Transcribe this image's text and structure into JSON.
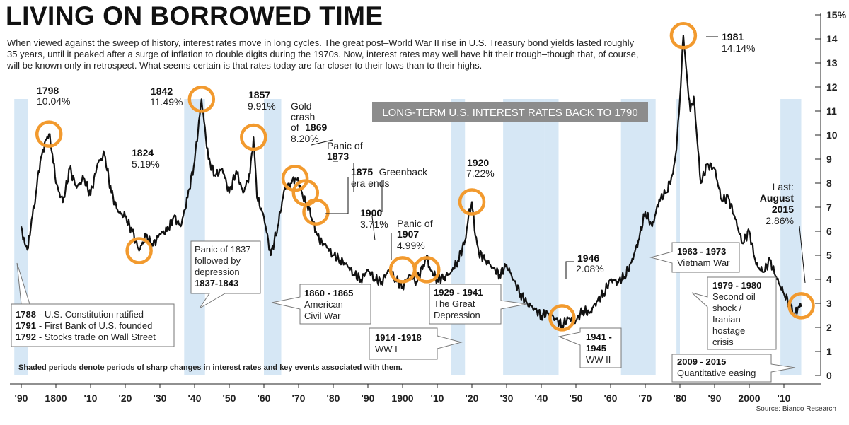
{
  "title": "LIVING ON BORROWED TIME",
  "subtitle": "When viewed against the sweep of history, interest rates move in long cycles. The great post–World War II rise in U.S. Treasury bond yields lasted roughly 35 years, until it peaked after a surge of inflation to double digits during the 1970s. Now, interest rates may well have hit their trough–though that, of course, will be known only in retrospect. What seems certain is that  rates today are far closer to their lows than to their highs.",
  "chart_title": "LONG-TERM U.S. INTEREST RATES BACK TO 1790",
  "footnote": "Shaded periods denote periods of sharp changes in interest rates and key events associated with them.",
  "source": "Source: Bianco Research",
  "colors": {
    "line": "#111111",
    "shade": "#cfe3f3",
    "circle": "#f29a2e",
    "banner": "#8c8c8c"
  },
  "chart_data": {
    "type": "line",
    "xlim": [
      1790,
      2016
    ],
    "ylim": [
      0,
      15
    ],
    "x_tick_labels": [
      "'90",
      "1800",
      "'10",
      "'20",
      "'30",
      "'40",
      "'50",
      "'60",
      "'70",
      "'80",
      "'90",
      "1900",
      "'10",
      "'20",
      "'30",
      "'40",
      "'50",
      "'60",
      "'70",
      "'80",
      "'90",
      "2000",
      "'10"
    ],
    "y_tick_labels": [
      "0",
      "1",
      "2",
      "3",
      "4",
      "5",
      "6",
      "7",
      "8",
      "9",
      "10",
      "11",
      "12",
      "13",
      "14",
      "15%"
    ],
    "series": [
      {
        "x": [
          1790,
          1791,
          1792,
          1793,
          1794,
          1795,
          1796,
          1797,
          1798,
          1799,
          1800,
          1802,
          1804,
          1806,
          1808,
          1810,
          1812,
          1814,
          1816,
          1818,
          1820,
          1822,
          1824,
          1826,
          1828,
          1830,
          1832,
          1834,
          1836,
          1838,
          1840,
          1842,
          1844,
          1846,
          1848,
          1850,
          1852,
          1854,
          1856,
          1857,
          1858,
          1860,
          1862,
          1864,
          1866,
          1868,
          1869,
          1870,
          1871,
          1872,
          1873,
          1874,
          1875,
          1876,
          1878,
          1880,
          1882,
          1884,
          1886,
          1888,
          1890,
          1892,
          1894,
          1896,
          1898,
          1900,
          1902,
          1904,
          1906,
          1907,
          1908,
          1910,
          1912,
          1914,
          1916,
          1918,
          1919,
          1920,
          1921,
          1922,
          1924,
          1926,
          1928,
          1930,
          1932,
          1934,
          1936,
          1938,
          1940,
          1942,
          1944,
          1946,
          1948,
          1950,
          1952,
          1954,
          1956,
          1958,
          1960,
          1962,
          1964,
          1966,
          1968,
          1970,
          1972,
          1974,
          1976,
          1978,
          1979,
          1980,
          1981,
          1982,
          1983,
          1984,
          1986,
          1988,
          1990,
          1992,
          1994,
          1996,
          1998,
          2000,
          2002,
          2004,
          2006,
          2008,
          2010,
          2012,
          2013,
          2014,
          2015
        ],
        "y": [
          6.2,
          5.5,
          5.3,
          6.5,
          7.2,
          8.5,
          9.2,
          9.8,
          10.04,
          9.2,
          8.0,
          7.2,
          8.6,
          7.8,
          8.2,
          7.5,
          8.8,
          9.2,
          7.6,
          6.8,
          6.6,
          6.0,
          5.19,
          5.8,
          5.4,
          5.9,
          6.0,
          6.6,
          6.2,
          7.4,
          8.9,
          11.49,
          9.0,
          8.3,
          8.6,
          7.6,
          8.5,
          7.6,
          8.4,
          9.91,
          7.4,
          6.6,
          5.0,
          6.2,
          7.8,
          8.0,
          8.2,
          8.0,
          7.6,
          7.2,
          7.0,
          6.4,
          6.0,
          5.6,
          5.4,
          5.0,
          4.8,
          4.6,
          4.2,
          4.0,
          4.4,
          4.0,
          3.9,
          4.4,
          4.0,
          3.71,
          4.2,
          3.9,
          4.6,
          4.99,
          4.4,
          4.0,
          4.1,
          4.3,
          4.8,
          5.6,
          6.6,
          7.22,
          5.8,
          5.1,
          4.8,
          4.5,
          4.2,
          4.6,
          4.0,
          3.4,
          3.0,
          2.8,
          2.5,
          2.6,
          2.4,
          2.08,
          2.4,
          2.3,
          2.7,
          2.6,
          3.1,
          3.4,
          4.0,
          3.9,
          4.1,
          4.7,
          5.6,
          6.8,
          6.2,
          7.3,
          7.6,
          8.4,
          9.4,
          11.5,
          14.14,
          12.5,
          11.0,
          11.6,
          8.0,
          8.8,
          8.6,
          7.3,
          7.4,
          6.5,
          5.5,
          6.0,
          4.6,
          4.3,
          4.8,
          4.0,
          3.4,
          2.9,
          2.5,
          2.8,
          2.86
        ]
      }
    ],
    "highlighted_points": [
      {
        "year": "1798",
        "value": "10.04%"
      },
      {
        "year": "1824",
        "value": "5.19%"
      },
      {
        "year": "1842",
        "value": "11.49%"
      },
      {
        "year": "1857",
        "value": "9.91%"
      },
      {
        "year": "1869",
        "value": "8.20%"
      },
      {
        "year": "1873"
      },
      {
        "year": "1875"
      },
      {
        "year": "1900",
        "value": "3.71%"
      },
      {
        "year": "1907",
        "value": "4.99%"
      },
      {
        "year": "1920",
        "value": "7.22%"
      },
      {
        "year": "1946",
        "value": "2.08%"
      },
      {
        "year": "1981",
        "value": "14.14%"
      },
      {
        "year": "August 2015",
        "value": "2.86%"
      }
    ],
    "shaded_periods": [
      {
        "from": 1788,
        "to": 1792
      },
      {
        "from": 1837,
        "to": 1843
      },
      {
        "from": 1860,
        "to": 1865
      },
      {
        "from": 1914,
        "to": 1918
      },
      {
        "from": 1929,
        "to": 1941
      },
      {
        "from": 1941,
        "to": 1945
      },
      {
        "from": 1963,
        "to": 1973
      },
      {
        "from": 1979,
        "to": 1980
      },
      {
        "from": 2009,
        "to": 2015
      }
    ],
    "events": [
      {
        "years": "1788",
        "text": "- U.S. Constitution ratified"
      },
      {
        "years": "1791",
        "text": "- First Bank of U.S. founded"
      },
      {
        "years": "1792",
        "text": "- Stocks trade on Wall Street"
      },
      {
        "text1": "Panic of 1837",
        "text2": "followed by",
        "text3": "depression",
        "years": "1837-1843"
      },
      {
        "years": "1860 - 1865",
        "text1": "American",
        "text2": "Civil War"
      },
      {
        "years": "1914 -1918",
        "text1": "WW I"
      },
      {
        "years": "1929 - 1941",
        "text1": "The Great",
        "text2": "Depression"
      },
      {
        "years": "1941 -",
        "years2": "1945",
        "text1": "WW II"
      },
      {
        "years": "1963 - 1973",
        "text1": "Vietnam War"
      },
      {
        "years": "1979 - 1980",
        "text1": "Second oil",
        "text2": "shock /",
        "text3": "Iranian",
        "text4": "hostage",
        "text5": "crisis"
      },
      {
        "years": "2009 - 2015",
        "text1": "Quantitative easing"
      }
    ],
    "annotations": {
      "a1798": {
        "l1": "1798",
        "l2": "10.04%"
      },
      "a1824": {
        "l1": "1824",
        "l2": "5.19%"
      },
      "a1842": {
        "l1": "1842",
        "l2": "11.49%"
      },
      "a1857": {
        "l1": "1857",
        "l2": "9.91%"
      },
      "a1869": {
        "l1": "Gold",
        "l2": "crash",
        "l3": "of",
        "l3b": "1869",
        "l4": "8.20%"
      },
      "a1873": {
        "l1": "Panic of",
        "l2": "1873"
      },
      "a1875": {
        "l1b": "1875",
        "l1": "Greenback",
        "l2": "era ends"
      },
      "a1900": {
        "l1": "1900",
        "l2": "3.71%"
      },
      "a1907": {
        "l1": "Panic of",
        "l2": "1907",
        "l3": "4.99%"
      },
      "a1920": {
        "l1": "1920",
        "l2": "7.22%"
      },
      "a1946": {
        "l1": "1946",
        "l2": "2.08%"
      },
      "a1981": {
        "l1": "1981",
        "l2": "14.14%"
      },
      "alast": {
        "l1": "Last:",
        "l2": "August",
        "l3": "2015",
        "l4": "2.86%"
      }
    }
  }
}
